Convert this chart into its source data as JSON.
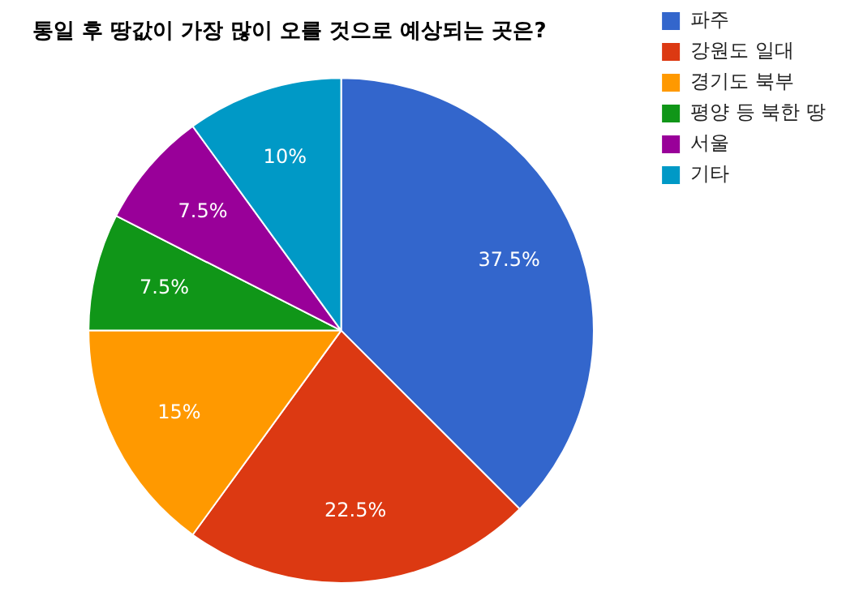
{
  "chart_data": {
    "type": "pie",
    "title": "통일 후 땅값이 가장 많이 오를 것으로 예상되는 곳은?",
    "categories": [
      "파주",
      "강원도 일대",
      "경기도 북부",
      "평양 등 북한 땅",
      "서울",
      "기타"
    ],
    "values": [
      37.5,
      22.5,
      15,
      7.5,
      7.5,
      10
    ],
    "colors": [
      "#3366cc",
      "#dc3912",
      "#ff9900",
      "#109618",
      "#990099",
      "#0099c6"
    ],
    "value_labels": [
      "37.5%",
      "22.5%",
      "15%",
      "7.5%",
      "7.5%",
      "10%"
    ],
    "legend": "top right"
  }
}
